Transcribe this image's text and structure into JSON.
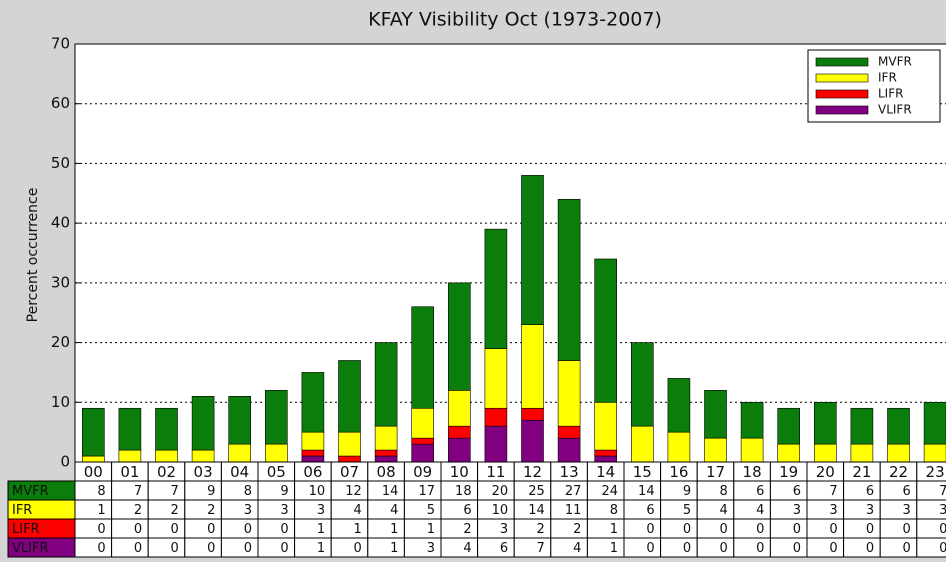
{
  "chart_data": {
    "type": "stacked_bar",
    "title": "KFAY Visibility Oct (1973-2007)",
    "y_label": "Percent occurrence",
    "categories": [
      "00",
      "01",
      "02",
      "03",
      "04",
      "05",
      "06",
      "07",
      "08",
      "09",
      "10",
      "11",
      "12",
      "13",
      "14",
      "15",
      "16",
      "17",
      "18",
      "19",
      "20",
      "21",
      "22",
      "23"
    ],
    "series": [
      {
        "name": "MVFR",
        "color": "#0a7d0a",
        "values": [
          8,
          7,
          7,
          9,
          8,
          9,
          10,
          12,
          14,
          17,
          18,
          20,
          25,
          27,
          24,
          14,
          9,
          8,
          6,
          6,
          7,
          6,
          6,
          7
        ]
      },
      {
        "name": "IFR",
        "color": "#ffff00",
        "values": [
          1,
          2,
          2,
          2,
          3,
          3,
          3,
          4,
          4,
          5,
          6,
          10,
          14,
          11,
          8,
          6,
          5,
          4,
          4,
          3,
          3,
          3,
          3,
          3
        ]
      },
      {
        "name": "LIFR",
        "color": "#ff0000",
        "values": [
          0,
          0,
          0,
          0,
          0,
          0,
          1,
          1,
          1,
          1,
          2,
          3,
          2,
          2,
          1,
          0,
          0,
          0,
          0,
          0,
          0,
          0,
          0,
          0
        ]
      },
      {
        "name": "VLIFR",
        "color": "#800080",
        "values": [
          0,
          0,
          0,
          0,
          0,
          0,
          1,
          0,
          1,
          3,
          4,
          6,
          7,
          4,
          1,
          0,
          0,
          0,
          0,
          0,
          0,
          0,
          0,
          0
        ]
      }
    ],
    "ylim": [
      0,
      70
    ],
    "yticks": [
      0,
      10,
      20,
      30,
      40,
      50,
      60,
      70
    ],
    "grid": true,
    "legend": "upper right"
  }
}
